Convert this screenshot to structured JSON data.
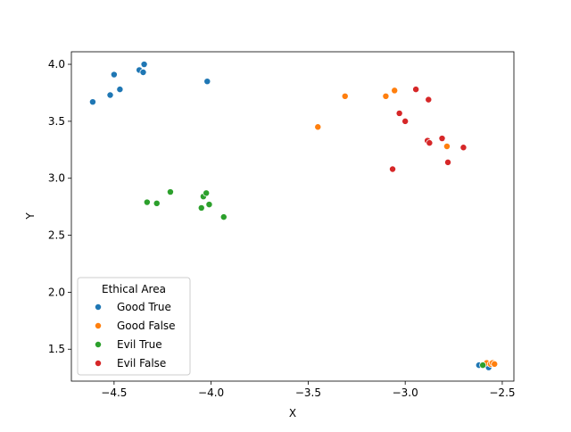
{
  "chart_data": {
    "type": "scatter",
    "xlabel": "X",
    "ylabel": "Y",
    "xlim": [
      -4.72,
      -2.44
    ],
    "ylim": [
      1.22,
      4.11
    ],
    "x_ticks": [
      -4.5,
      -4.0,
      -3.5,
      -3.0,
      -2.5
    ],
    "x_tick_labels": [
      "−4.5",
      "−4.0",
      "−3.5",
      "−3.0",
      "−2.5"
    ],
    "y_ticks": [
      1.5,
      2.0,
      2.5,
      3.0,
      3.5,
      4.0
    ],
    "y_tick_labels": [
      "1.5",
      "2.0",
      "2.5",
      "3.0",
      "3.5",
      "4.0"
    ],
    "grid": false,
    "legend": {
      "title": "Ethical Area",
      "placement": "lower-left"
    },
    "series": [
      {
        "name": "Good True",
        "color": "#1f77b4",
        "points": [
          [
            -4.61,
            3.67
          ],
          [
            -4.52,
            3.73
          ],
          [
            -4.5,
            3.91
          ],
          [
            -4.47,
            3.78
          ],
          [
            -4.37,
            3.95
          ],
          [
            -4.35,
            3.93
          ],
          [
            -4.345,
            4.0
          ],
          [
            -4.02,
            3.85
          ],
          [
            -2.62,
            1.36
          ],
          [
            -2.57,
            1.34
          ]
        ]
      },
      {
        "name": "Good False",
        "color": "#ff7f0e",
        "points": [
          [
            -3.45,
            3.45
          ],
          [
            -3.31,
            3.72
          ],
          [
            -3.1,
            3.72
          ],
          [
            -3.055,
            3.77
          ],
          [
            -2.785,
            3.28
          ],
          [
            -2.58,
            1.38
          ],
          [
            -2.56,
            1.37
          ],
          [
            -2.55,
            1.38
          ],
          [
            -2.54,
            1.37
          ]
        ]
      },
      {
        "name": "Evil True",
        "color": "#2ca02c",
        "points": [
          [
            -4.33,
            2.79
          ],
          [
            -4.28,
            2.78
          ],
          [
            -4.21,
            2.88
          ],
          [
            -4.05,
            2.74
          ],
          [
            -4.04,
            2.84
          ],
          [
            -4.025,
            2.87
          ],
          [
            -4.01,
            2.77
          ],
          [
            -3.935,
            2.66
          ],
          [
            -2.6,
            1.36
          ]
        ]
      },
      {
        "name": "Evil False",
        "color": "#d62728",
        "points": [
          [
            -3.065,
            3.08
          ],
          [
            -3.03,
            3.57
          ],
          [
            -3.0,
            3.5
          ],
          [
            -2.945,
            3.78
          ],
          [
            -2.885,
            3.33
          ],
          [
            -2.88,
            3.69
          ],
          [
            -2.875,
            3.31
          ],
          [
            -2.81,
            3.35
          ],
          [
            -2.78,
            3.14
          ],
          [
            -2.7,
            3.27
          ]
        ]
      }
    ]
  }
}
